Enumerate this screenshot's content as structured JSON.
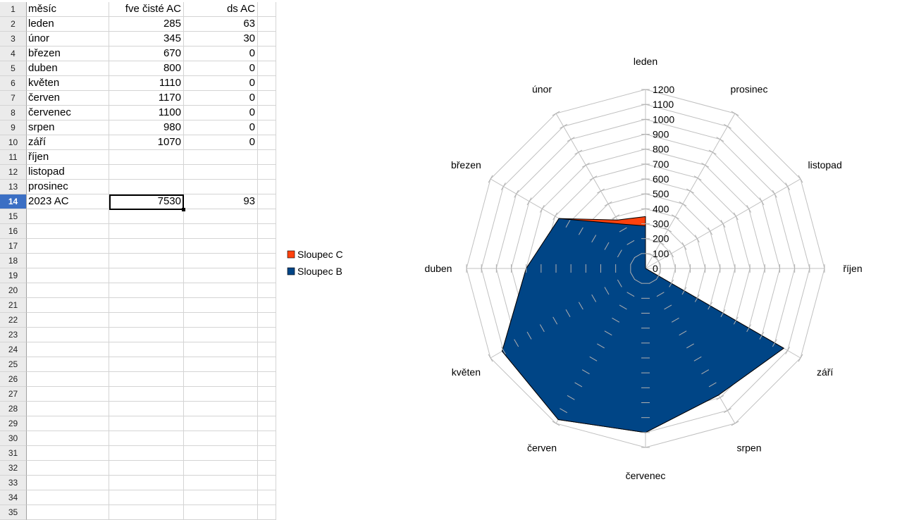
{
  "spreadsheet": {
    "columns": [
      "A",
      "B",
      "C",
      "D"
    ],
    "rows": [
      {
        "num": "1",
        "a": "měsíc",
        "b": "fve čisté AC",
        "c": "ds AC"
      },
      {
        "num": "2",
        "a": "leden",
        "b": "285",
        "c": "63"
      },
      {
        "num": "3",
        "a": "únor",
        "b": "345",
        "c": "30"
      },
      {
        "num": "4",
        "a": "březen",
        "b": "670",
        "c": "0"
      },
      {
        "num": "5",
        "a": "duben",
        "b": "800",
        "c": "0"
      },
      {
        "num": "6",
        "a": "květen",
        "b": "1110",
        "c": "0"
      },
      {
        "num": "7",
        "a": "červen",
        "b": "1170",
        "c": "0"
      },
      {
        "num": "8",
        "a": "červenec",
        "b": "1100",
        "c": "0"
      },
      {
        "num": "9",
        "a": "srpen",
        "b": "980",
        "c": "0"
      },
      {
        "num": "10",
        "a": "září",
        "b": "1070",
        "c": "0"
      },
      {
        "num": "11",
        "a": "říjen",
        "b": "",
        "c": ""
      },
      {
        "num": "12",
        "a": "listopad",
        "b": "",
        "c": ""
      },
      {
        "num": "13",
        "a": "prosinec",
        "b": "",
        "c": ""
      },
      {
        "num": "14",
        "a": "2023 AC",
        "b": "7530",
        "c": "93"
      },
      {
        "num": "15",
        "a": "",
        "b": "",
        "c": ""
      },
      {
        "num": "16",
        "a": "",
        "b": "",
        "c": ""
      },
      {
        "num": "17",
        "a": "",
        "b": "",
        "c": ""
      },
      {
        "num": "18",
        "a": "",
        "b": "",
        "c": ""
      },
      {
        "num": "19",
        "a": "",
        "b": "",
        "c": ""
      },
      {
        "num": "20",
        "a": "",
        "b": "",
        "c": ""
      },
      {
        "num": "21",
        "a": "",
        "b": "",
        "c": ""
      },
      {
        "num": "22",
        "a": "",
        "b": "",
        "c": ""
      },
      {
        "num": "23",
        "a": "",
        "b": "",
        "c": ""
      },
      {
        "num": "24",
        "a": "",
        "b": "",
        "c": ""
      },
      {
        "num": "25",
        "a": "",
        "b": "",
        "c": ""
      },
      {
        "num": "26",
        "a": "",
        "b": "",
        "c": ""
      },
      {
        "num": "27",
        "a": "",
        "b": "",
        "c": ""
      },
      {
        "num": "28",
        "a": "",
        "b": "",
        "c": ""
      },
      {
        "num": "29",
        "a": "",
        "b": "",
        "c": ""
      },
      {
        "num": "30",
        "a": "",
        "b": "",
        "c": ""
      },
      {
        "num": "31",
        "a": "",
        "b": "",
        "c": ""
      },
      {
        "num": "32",
        "a": "",
        "b": "",
        "c": ""
      },
      {
        "num": "33",
        "a": "",
        "b": "",
        "c": ""
      },
      {
        "num": "34",
        "a": "",
        "b": "",
        "c": ""
      },
      {
        "num": "35",
        "a": "",
        "b": "",
        "c": ""
      }
    ],
    "selected_row": "14",
    "active_cell": "B14"
  },
  "chart_data": {
    "type": "radar-filled",
    "title": "",
    "categories": [
      "leden",
      "prosinec",
      "listopad",
      "říjen",
      "září",
      "srpen",
      "červenec",
      "červen",
      "květen",
      "duben",
      "březen",
      "únor"
    ],
    "series": [
      {
        "name": "Sloupec B",
        "color": "#004586",
        "values": [
          285,
          null,
          null,
          null,
          1070,
          980,
          1100,
          1170,
          1110,
          800,
          670,
          345
        ]
      },
      {
        "name": "Sloupec C",
        "color": "#ff420e",
        "values": [
          348,
          null,
          null,
          null,
          1070,
          980,
          1100,
          1170,
          1110,
          800,
          670,
          375
        ]
      }
    ],
    "axis_ticks": [
      "0",
      "100",
      "200",
      "300",
      "400",
      "500",
      "600",
      "700",
      "800",
      "900",
      "1000",
      "1100",
      "1200"
    ],
    "rmax": 1200,
    "legend": [
      {
        "label": "Sloupec C",
        "color": "#ff420e"
      },
      {
        "label": "Sloupec B",
        "color": "#004586"
      }
    ],
    "legend_position": "left",
    "grid": true
  }
}
